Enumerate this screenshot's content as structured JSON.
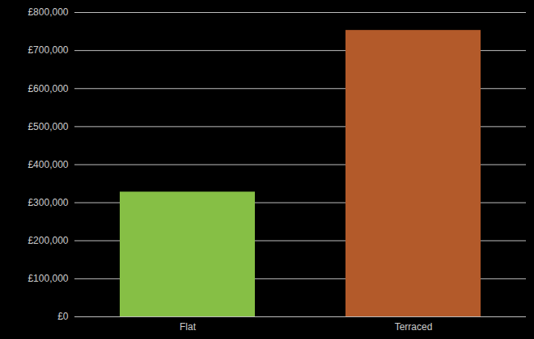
{
  "chart_data": {
    "type": "bar",
    "categories": [
      "Flat",
      "Terraced"
    ],
    "values": [
      328000,
      753000
    ],
    "colors": [
      "#86bf45",
      "#b35a2a"
    ],
    "ylim": [
      0,
      800000
    ],
    "yticks": [
      {
        "value": 0,
        "label": "£0"
      },
      {
        "value": 100000,
        "label": "£100,000"
      },
      {
        "value": 200000,
        "label": "£200,000"
      },
      {
        "value": 300000,
        "label": "£300,000"
      },
      {
        "value": 400000,
        "label": "£400,000"
      },
      {
        "value": 500000,
        "label": "£500,000"
      },
      {
        "value": 600000,
        "label": "£600,000"
      },
      {
        "value": 700000,
        "label": "£700,000"
      },
      {
        "value": 800000,
        "label": "£800,000"
      }
    ],
    "grid": true
  }
}
